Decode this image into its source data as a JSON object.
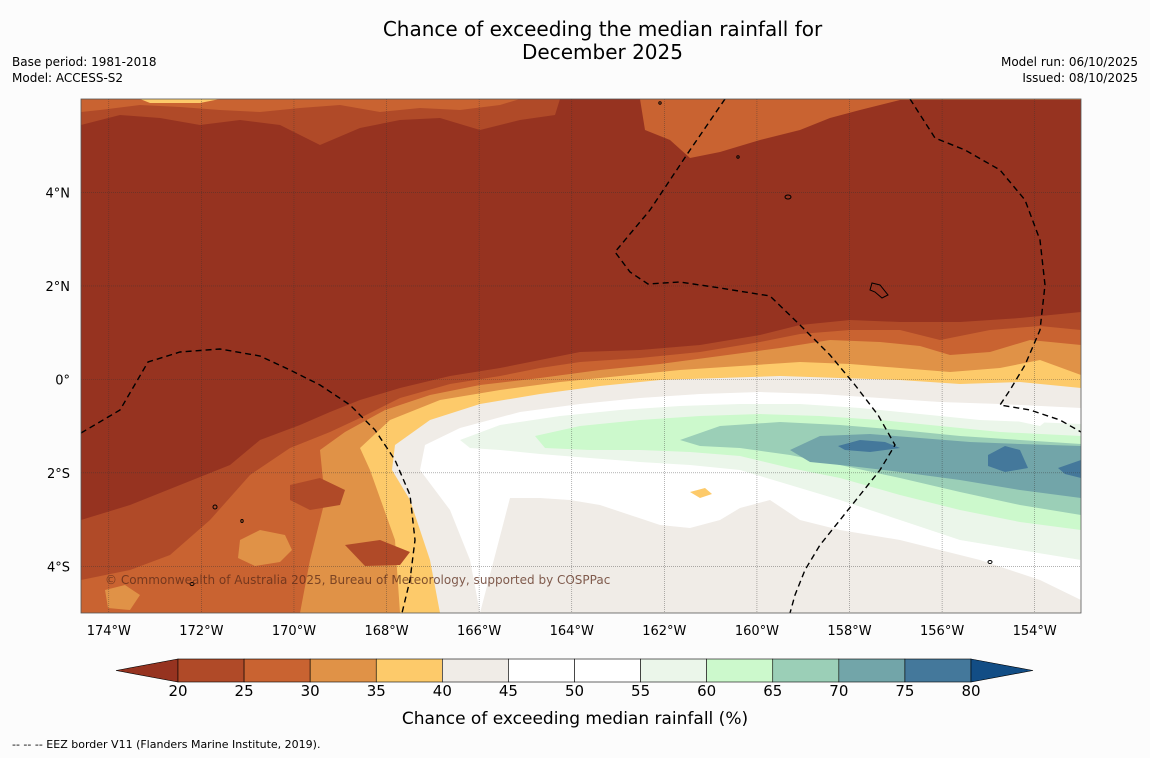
{
  "title": "Chance of exceeding the median rainfall for\nDecember 2025",
  "meta_left": {
    "base_period": "Base period: 1981-2018",
    "model": "Model: ACCESS-S2"
  },
  "meta_right": {
    "model_run": "Model run: 06/10/2025",
    "issued": "Issued: 08/10/2025"
  },
  "copyright": "© Commonwealth of Australia 2025, Bureau of Meteorology, supported by COSPPac",
  "map": {
    "lon_ticks": [
      "174°W",
      "172°W",
      "170°W",
      "168°W",
      "166°W",
      "164°W",
      "162°W",
      "160°W",
      "158°W",
      "156°W",
      "154°W"
    ],
    "lat_ticks": [
      "4°N",
      "2°N",
      "0°",
      "2°S",
      "4°S"
    ],
    "lon_range": [
      -174.6,
      -153.0
    ],
    "lat_range": [
      -5.0,
      6.0
    ]
  },
  "colorbar": {
    "levels": [
      "20",
      "25",
      "30",
      "35",
      "40",
      "45",
      "50",
      "55",
      "60",
      "65",
      "70",
      "75",
      "80"
    ],
    "colors": [
      "#963320",
      "#b04a28",
      "#c96331",
      "#e09247",
      "#fdca6a",
      "#f0ece7",
      "#ffffff",
      "#ffffff",
      "#ebf6ea",
      "#ccf9cc",
      "#9bcfb7",
      "#72a5a9",
      "#44789b",
      "#124d85"
    ],
    "label": "Chance of exceeding median rainfall (%)"
  },
  "footnote": "--  --  -- EEZ border V11 (Flanders Marine Institute, 2019).",
  "colors": {
    "frame": "#555555",
    "grid": "#333333",
    "eez": "#000000"
  }
}
